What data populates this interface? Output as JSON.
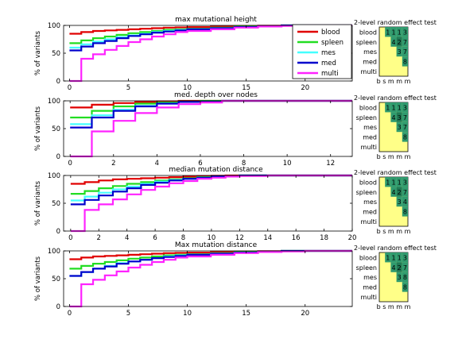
{
  "colors": {
    "blood": "#e00000",
    "spleen": "#22dd22",
    "mes": "#44ffff",
    "med": "#0000cc",
    "multi": "#ff22ff",
    "matrix_bg": "#ffff88",
    "cell_green": "#2f9a6e",
    "cell_dark": "#1f7a55"
  },
  "ylabel": "% of variants",
  "legend": [
    "blood",
    "spleen",
    "mes",
    "med",
    "multi"
  ],
  "matrix": {
    "title": "2-level random effect test",
    "row_labels": [
      "blood",
      "spleen",
      "mes",
      "med",
      "multi"
    ],
    "col_labels": "b s m m m",
    "panels": [
      [
        [
          "",
          "1",
          "1",
          "1",
          "3"
        ],
        [
          "",
          "",
          "4",
          "2",
          "7"
        ],
        [
          "",
          "",
          "",
          "3",
          "7"
        ],
        [
          "",
          "",
          "",
          "",
          "8"
        ],
        [
          "",
          "",
          "",
          "",
          ""
        ]
      ],
      [
        [
          "",
          "1",
          "1",
          "1",
          "3"
        ],
        [
          "",
          "",
          "4",
          "3",
          "7"
        ],
        [
          "",
          "",
          "",
          "3",
          "7"
        ],
        [
          "",
          "",
          "",
          "",
          "8"
        ],
        [
          "",
          "",
          "",
          "",
          ""
        ]
      ],
      [
        [
          "",
          "1",
          "1",
          "1",
          "3"
        ],
        [
          "",
          "",
          "4",
          "2",
          "7"
        ],
        [
          "",
          "",
          "",
          "3",
          "4"
        ],
        [
          "",
          "",
          "",
          "",
          "8"
        ],
        [
          "",
          "",
          "",
          "",
          ""
        ]
      ],
      [
        [
          "",
          "1",
          "1",
          "1",
          "3"
        ],
        [
          "",
          "",
          "4",
          "2",
          "7"
        ],
        [
          "",
          "",
          "",
          "3",
          "8"
        ],
        [
          "",
          "",
          "",
          "",
          "8"
        ],
        [
          "",
          "",
          "",
          "",
          ""
        ]
      ]
    ]
  },
  "chart_data": [
    {
      "type": "line",
      "title": "max mutational height",
      "ylabel": "% of variants",
      "xlim": [
        -0.5,
        24
      ],
      "ylim": [
        0,
        100
      ],
      "xticks": [
        0,
        5,
        10,
        15,
        20
      ],
      "yticks": [
        0,
        50,
        100
      ],
      "legend_position": "top-right",
      "series": [
        {
          "name": "blood",
          "x": [
            0,
            1,
            2,
            3,
            4,
            5,
            6,
            7,
            8,
            9,
            10,
            12,
            14,
            16,
            18,
            20,
            22,
            24
          ],
          "y": [
            85,
            88,
            90,
            91,
            92,
            93,
            94,
            95,
            96,
            96.5,
            97,
            98,
            99,
            99.5,
            100,
            100,
            100,
            100
          ]
        },
        {
          "name": "spleen",
          "x": [
            0,
            1,
            2,
            3,
            4,
            5,
            6,
            7,
            8,
            9,
            10,
            12,
            14,
            16,
            18,
            20,
            22,
            24
          ],
          "y": [
            68,
            73,
            77,
            80,
            83,
            86,
            88,
            90,
            92,
            93,
            94,
            96,
            98,
            99,
            100,
            100,
            100,
            100
          ]
        },
        {
          "name": "mes",
          "x": [
            0,
            1,
            2,
            3,
            4,
            5,
            6,
            7,
            8,
            9,
            10,
            12,
            14,
            16,
            18,
            20,
            22,
            24
          ],
          "y": [
            60,
            66,
            71,
            75,
            79,
            82,
            85,
            88,
            90,
            92,
            93,
            95,
            97,
            99,
            100,
            100,
            100,
            100
          ]
        },
        {
          "name": "med",
          "x": [
            0,
            1,
            2,
            3,
            4,
            5,
            6,
            7,
            8,
            9,
            10,
            12,
            14,
            16,
            18,
            20,
            22,
            24
          ],
          "y": [
            55,
            62,
            68,
            72,
            77,
            81,
            84,
            87,
            89,
            91,
            93,
            95,
            97,
            99,
            100,
            100,
            100,
            100
          ]
        },
        {
          "name": "multi",
          "x": [
            0,
            1,
            2,
            3,
            4,
            5,
            6,
            7,
            8,
            9,
            10,
            12,
            14,
            16,
            18,
            20,
            22,
            24
          ],
          "y": [
            0,
            40,
            48,
            56,
            63,
            70,
            75,
            80,
            84,
            88,
            90,
            93,
            96,
            98,
            99,
            100,
            100,
            100
          ]
        }
      ]
    },
    {
      "type": "line",
      "title": "med. depth over nodes",
      "ylabel": "% of variants",
      "xlim": [
        -0.3,
        13
      ],
      "ylim": [
        0,
        100
      ],
      "xticks": [
        0,
        2,
        4,
        6,
        8,
        10,
        12
      ],
      "yticks": [
        0,
        50,
        100
      ],
      "series": [
        {
          "name": "blood",
          "x": [
            0,
            1,
            2,
            3,
            4,
            5,
            6,
            7,
            13
          ],
          "y": [
            88,
            93,
            96,
            98,
            99,
            100,
            100,
            100,
            100
          ]
        },
        {
          "name": "spleen",
          "x": [
            0,
            1,
            2,
            3,
            4,
            5,
            6,
            7,
            13
          ],
          "y": [
            70,
            82,
            90,
            95,
            97,
            99,
            100,
            100,
            100
          ]
        },
        {
          "name": "mes",
          "x": [
            0,
            1,
            2,
            3,
            4,
            5,
            6,
            7,
            13
          ],
          "y": [
            58,
            74,
            84,
            91,
            95,
            98,
            99,
            100,
            100
          ]
        },
        {
          "name": "med",
          "x": [
            0,
            1,
            2,
            3,
            4,
            5,
            6,
            7,
            13
          ],
          "y": [
            52,
            70,
            82,
            90,
            95,
            98,
            99,
            100,
            100
          ]
        },
        {
          "name": "multi",
          "x": [
            0,
            1,
            2,
            3,
            4,
            5,
            6,
            7,
            13
          ],
          "y": [
            0,
            45,
            64,
            78,
            88,
            94,
            97,
            100,
            100
          ]
        }
      ]
    },
    {
      "type": "line",
      "title": "median mutation distance",
      "ylabel": "% of variants",
      "xlim": [
        -0.5,
        20
      ],
      "ylim": [
        0,
        100
      ],
      "xticks": [
        0,
        2,
        4,
        6,
        8,
        10,
        12,
        14,
        16,
        18,
        20
      ],
      "yticks": [
        0,
        50,
        100
      ],
      "series": [
        {
          "name": "blood",
          "x": [
            0,
            1,
            2,
            3,
            4,
            5,
            6,
            7,
            8,
            9,
            10,
            11,
            12,
            14,
            16,
            18,
            20
          ],
          "y": [
            85,
            88,
            91,
            93,
            94,
            95,
            96,
            97,
            98,
            99,
            99.5,
            100,
            100,
            100,
            100,
            100,
            100
          ]
        },
        {
          "name": "spleen",
          "x": [
            0,
            1,
            2,
            3,
            4,
            5,
            6,
            7,
            8,
            9,
            10,
            11,
            12,
            14,
            16,
            18,
            20
          ],
          "y": [
            67,
            72,
            77,
            81,
            85,
            88,
            91,
            93,
            95,
            97,
            98,
            99,
            100,
            100,
            100,
            100,
            100
          ]
        },
        {
          "name": "mes",
          "x": [
            0,
            1,
            2,
            3,
            4,
            5,
            6,
            7,
            8,
            9,
            10,
            11,
            12,
            14,
            16,
            18,
            20
          ],
          "y": [
            55,
            62,
            69,
            75,
            80,
            85,
            89,
            92,
            94,
            96,
            98,
            99,
            100,
            100,
            100,
            100,
            100
          ]
        },
        {
          "name": "med",
          "x": [
            0,
            1,
            2,
            3,
            4,
            5,
            6,
            7,
            8,
            9,
            10,
            11,
            12,
            14,
            16,
            18,
            20
          ],
          "y": [
            48,
            56,
            64,
            71,
            77,
            83,
            87,
            91,
            94,
            96,
            98,
            99,
            100,
            100,
            100,
            100,
            100
          ]
        },
        {
          "name": "multi",
          "x": [
            0,
            1,
            2,
            3,
            4,
            5,
            6,
            7,
            8,
            9,
            10,
            11,
            12,
            14,
            16,
            18,
            20
          ],
          "y": [
            0,
            38,
            48,
            57,
            66,
            74,
            80,
            86,
            90,
            94,
            96,
            98,
            99,
            100,
            100,
            100,
            100
          ]
        }
      ]
    },
    {
      "type": "line",
      "title": "Max mutation distance",
      "ylabel": "% of variants",
      "xlim": [
        -0.5,
        24
      ],
      "ylim": [
        0,
        100
      ],
      "xticks": [
        0,
        5,
        10,
        15,
        20
      ],
      "yticks": [
        0,
        50,
        100
      ],
      "series": [
        {
          "name": "blood",
          "x": [
            0,
            1,
            2,
            3,
            4,
            5,
            6,
            7,
            8,
            9,
            10,
            12,
            14,
            16,
            18,
            20,
            22,
            24
          ],
          "y": [
            85,
            88,
            90,
            91,
            92,
            93,
            94,
            95,
            96,
            96.5,
            97,
            98,
            99,
            99.5,
            100,
            100,
            100,
            100
          ]
        },
        {
          "name": "spleen",
          "x": [
            0,
            1,
            2,
            3,
            4,
            5,
            6,
            7,
            8,
            9,
            10,
            12,
            14,
            16,
            18,
            20,
            22,
            24
          ],
          "y": [
            68,
            73,
            77,
            80,
            83,
            86,
            88,
            90,
            92,
            93,
            94,
            96,
            98,
            99,
            100,
            100,
            100,
            100
          ]
        },
        {
          "name": "mes",
          "x": [
            0,
            1,
            2,
            3,
            4,
            5,
            6,
            7,
            8,
            9,
            10,
            12,
            14,
            16,
            18,
            20,
            22,
            24
          ],
          "y": [
            55,
            62,
            68,
            73,
            78,
            81,
            84,
            87,
            90,
            92,
            93,
            95,
            97,
            99,
            100,
            100,
            100,
            100
          ]
        },
        {
          "name": "med",
          "x": [
            0,
            1,
            2,
            3,
            4,
            5,
            6,
            7,
            8,
            9,
            10,
            12,
            14,
            16,
            18,
            20,
            22,
            24
          ],
          "y": [
            55,
            62,
            68,
            72,
            77,
            81,
            84,
            87,
            89,
            91,
            93,
            95,
            97,
            99,
            100,
            100,
            100,
            100
          ]
        },
        {
          "name": "multi",
          "x": [
            0,
            1,
            2,
            3,
            4,
            5,
            6,
            7,
            8,
            9,
            10,
            12,
            14,
            16,
            18,
            20,
            22,
            24
          ],
          "y": [
            0,
            40,
            48,
            56,
            63,
            70,
            75,
            80,
            84,
            88,
            90,
            93,
            96,
            98,
            99,
            100,
            100,
            100
          ]
        }
      ]
    }
  ]
}
